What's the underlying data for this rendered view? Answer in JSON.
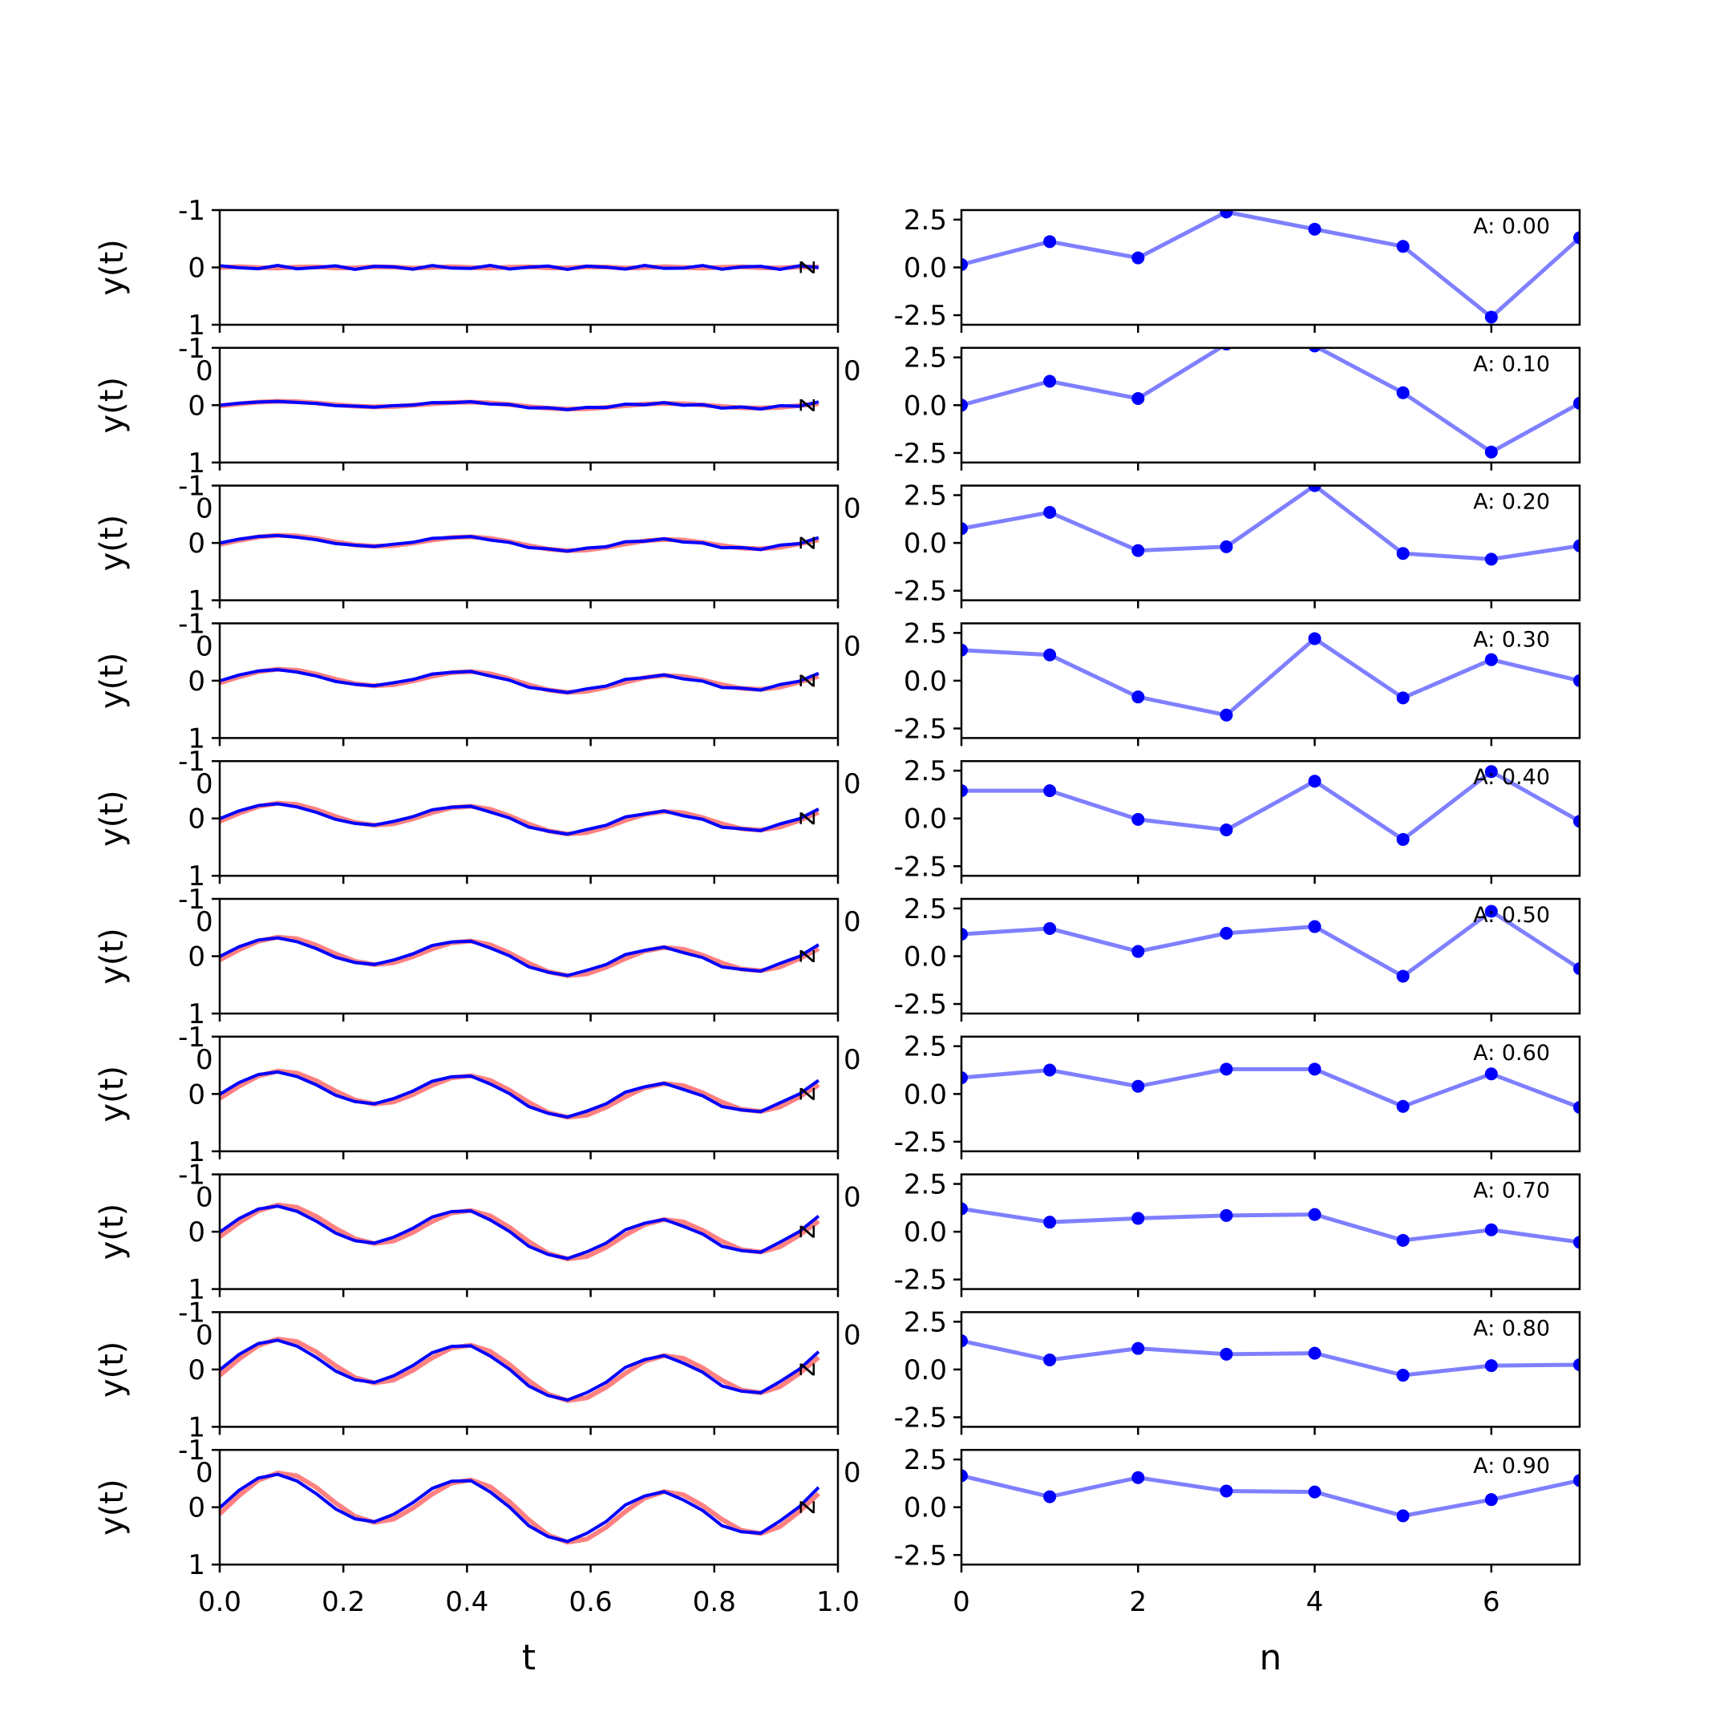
{
  "chart_data": [
    {
      "type": "line",
      "panel": "left",
      "xlabel": "t",
      "ylabels": [
        "y(t)",
        "y(t)",
        "y(t)",
        "y(t)",
        "y(t)",
        "y(t)",
        "y(t)",
        "y(t)",
        "y(t)",
        "y(t)"
      ],
      "xlim": [
        0.0,
        1.0
      ],
      "ylim": [
        -1,
        1
      ],
      "xticks": [
        "0.0",
        "0.2",
        "0.4",
        "0.6",
        "0.8",
        "1.0"
      ],
      "yticks": [
        "-1",
        "0",
        "1"
      ],
      "x": [
        0.0,
        0.03125,
        0.0625,
        0.09375,
        0.125,
        0.15625,
        0.1875,
        0.21875,
        0.25,
        0.28125,
        0.3125,
        0.34375,
        0.375,
        0.40625,
        0.4375,
        0.46875,
        0.5,
        0.53125,
        0.5625,
        0.59375,
        0.625,
        0.65625,
        0.6875,
        0.71875,
        0.75,
        0.78125,
        0.8125,
        0.84375,
        0.875,
        0.90625,
        0.9375,
        0.96875
      ],
      "amplitudes": [
        0.0,
        0.1,
        0.2,
        0.3,
        0.4,
        0.5,
        0.6,
        0.7,
        0.8,
        0.9
      ],
      "series_colors": {
        "reference": "#ff6b6b",
        "reconstruction": "#0000ff"
      },
      "stray_labels": [
        "z",
        "0",
        "0"
      ]
    },
    {
      "type": "line",
      "panel": "right",
      "xlabel": "n",
      "xlim": [
        0,
        7
      ],
      "ylim": [
        -3.0,
        3.0
      ],
      "xticks": [
        "0",
        "2",
        "4",
        "6"
      ],
      "yticks": [
        "2.5",
        "0.0",
        "-2.5"
      ],
      "amp_labels": [
        "A: 0.00",
        "A: 0.10",
        "A: 0.20",
        "A: 0.30",
        "A: 0.40",
        "A: 0.50",
        "A: 0.60",
        "A: 0.70",
        "A: 0.80",
        "A: 0.90"
      ],
      "n": [
        0,
        1,
        2,
        3,
        4,
        5,
        6,
        7
      ],
      "series_color": "#0000ff",
      "series": [
        {
          "values": [
            0.15,
            1.35,
            0.5,
            2.9,
            2.0,
            1.1,
            -2.6,
            1.55
          ]
        },
        {
          "values": [
            0.0,
            1.25,
            0.35,
            3.2,
            3.1,
            0.65,
            -2.45,
            0.1
          ]
        },
        {
          "values": [
            0.75,
            1.6,
            -0.4,
            -0.2,
            3.0,
            -0.55,
            -0.85,
            -0.15
          ]
        },
        {
          "values": [
            1.6,
            1.35,
            -0.85,
            -1.8,
            2.2,
            -0.9,
            1.1,
            0.0
          ]
        },
        {
          "values": [
            1.45,
            1.45,
            -0.05,
            -0.6,
            1.95,
            -1.1,
            2.45,
            -0.15
          ]
        },
        {
          "values": [
            1.15,
            1.45,
            0.25,
            1.2,
            1.55,
            -1.05,
            2.35,
            -0.65
          ]
        },
        {
          "values": [
            0.85,
            1.25,
            0.4,
            1.3,
            1.3,
            -0.65,
            1.05,
            -0.7
          ]
        },
        {
          "values": [
            1.2,
            0.5,
            0.7,
            0.85,
            0.9,
            -0.45,
            0.1,
            -0.55
          ]
        },
        {
          "values": [
            1.5,
            0.5,
            1.1,
            0.8,
            0.85,
            -0.3,
            0.2,
            0.25
          ]
        },
        {
          "values": [
            1.65,
            0.55,
            1.55,
            0.85,
            0.8,
            -0.45,
            0.4,
            1.4
          ]
        }
      ]
    }
  ]
}
